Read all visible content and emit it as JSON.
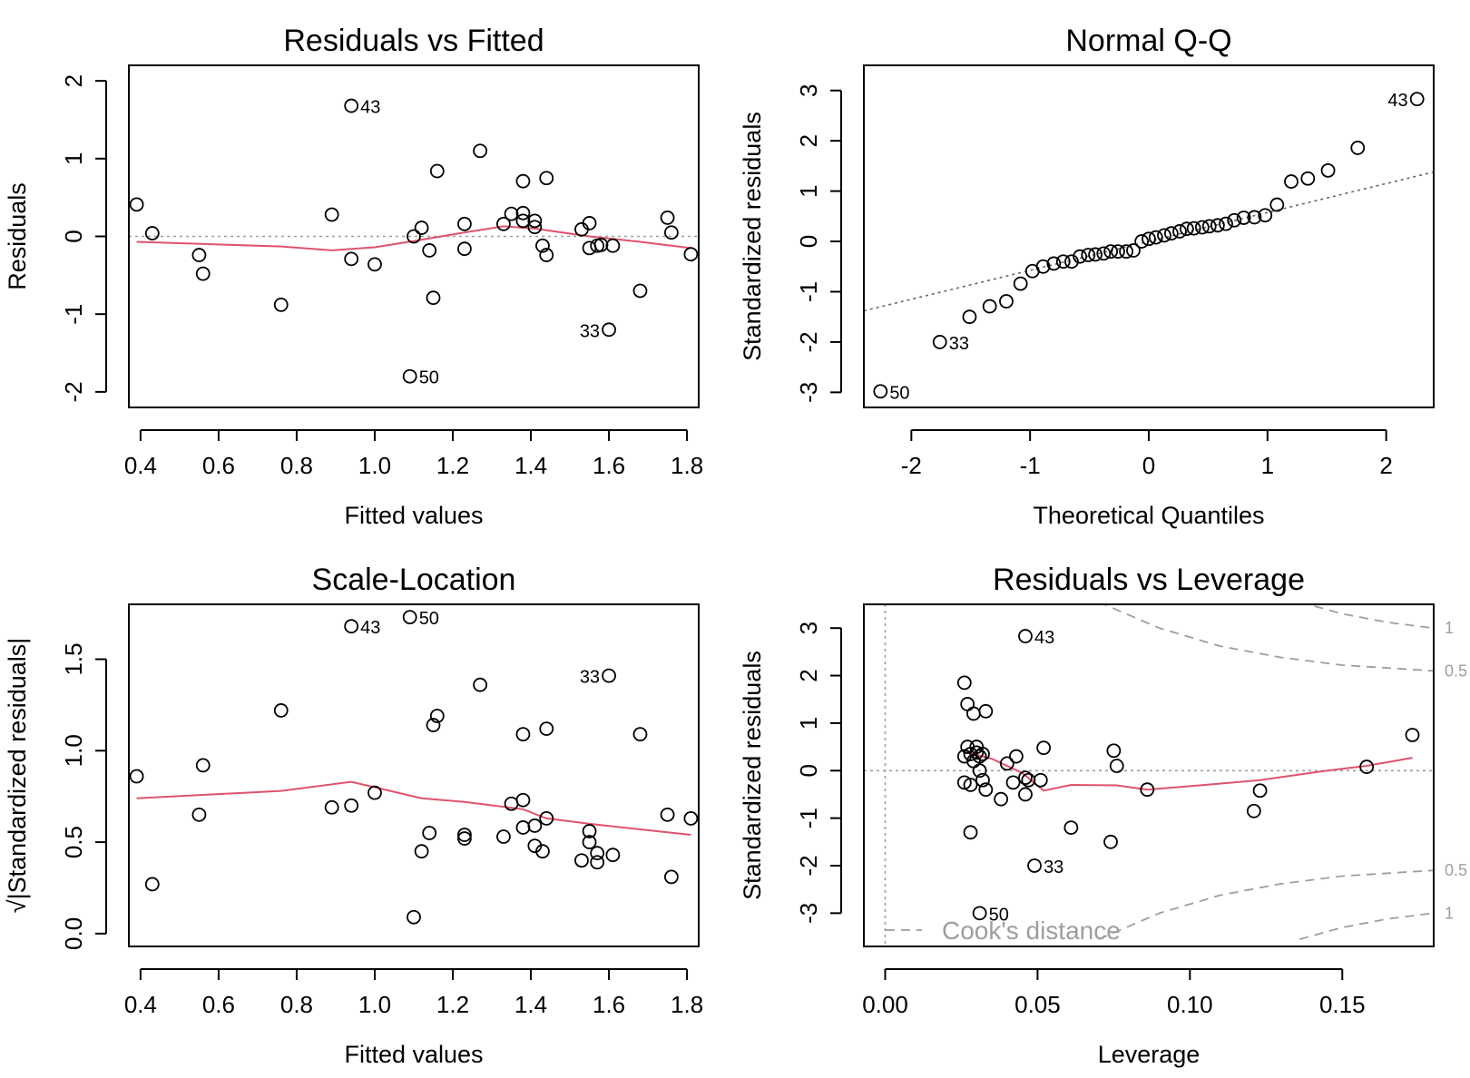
{
  "colors": {
    "points": "#000000",
    "smooth": "#df536b",
    "reference": "#9e9e9e"
  },
  "chart_data": [
    {
      "type": "scatter",
      "title": "Residuals vs Fitted",
      "xlabel": "Fitted values",
      "ylabel": "Residuals",
      "xlim": [
        0.37,
        1.83
      ],
      "ylim": [
        -2.2,
        2.2
      ],
      "xticks": [
        "0.4",
        "0.6",
        "0.8",
        "1.0",
        "1.2",
        "1.4",
        "1.6",
        "1.8"
      ],
      "yticks": [
        "-2",
        "-1",
        "0",
        "1",
        "2"
      ],
      "points": [
        [
          0.39,
          0.41
        ],
        [
          0.43,
          0.04
        ],
        [
          0.55,
          -0.24
        ],
        [
          0.56,
          -0.48
        ],
        [
          0.76,
          -0.88
        ],
        [
          0.89,
          0.28
        ],
        [
          0.94,
          1.68
        ],
        [
          0.94,
          -0.29
        ],
        [
          1.0,
          -0.36
        ],
        [
          1.09,
          -1.8
        ],
        [
          1.1,
          0.0
        ],
        [
          1.12,
          0.11
        ],
        [
          1.14,
          -0.18
        ],
        [
          1.15,
          -0.79
        ],
        [
          1.16,
          0.84
        ],
        [
          1.23,
          -0.16
        ],
        [
          1.23,
          0.16
        ],
        [
          1.27,
          1.1
        ],
        [
          1.33,
          0.16
        ],
        [
          1.35,
          0.29
        ],
        [
          1.38,
          0.71
        ],
        [
          1.38,
          0.3
        ],
        [
          1.38,
          0.2
        ],
        [
          1.41,
          0.2
        ],
        [
          1.41,
          0.12
        ],
        [
          1.43,
          -0.12
        ],
        [
          1.44,
          -0.24
        ],
        [
          1.44,
          0.75
        ],
        [
          1.53,
          0.09
        ],
        [
          1.55,
          0.17
        ],
        [
          1.55,
          -0.15
        ],
        [
          1.57,
          -0.12
        ],
        [
          1.58,
          -0.11
        ],
        [
          1.6,
          -1.2
        ],
        [
          1.61,
          -0.12
        ],
        [
          1.68,
          -0.7
        ],
        [
          1.75,
          0.24
        ],
        [
          1.76,
          0.05
        ],
        [
          1.81,
          -0.23
        ]
      ],
      "smooth": [
        [
          0.39,
          -0.07
        ],
        [
          0.76,
          -0.13
        ],
        [
          0.89,
          -0.18
        ],
        [
          1.0,
          -0.14
        ],
        [
          1.1,
          -0.06
        ],
        [
          1.23,
          0.05
        ],
        [
          1.33,
          0.13
        ],
        [
          1.41,
          0.1
        ],
        [
          1.55,
          0.0
        ],
        [
          1.68,
          -0.07
        ],
        [
          1.81,
          -0.15
        ]
      ],
      "reference": {
        "kind": "hline",
        "value": 0
      },
      "labels": [
        {
          "text": "43",
          "x": 0.94,
          "y": 1.68
        },
        {
          "text": "50",
          "x": 1.09,
          "y": -1.8
        },
        {
          "text": "33",
          "x": 1.6,
          "y": -1.2,
          "side": "left"
        }
      ]
    },
    {
      "type": "scatter",
      "title": "Normal Q-Q",
      "xlabel": "Theoretical Quantiles",
      "ylabel": "Standardized residuals",
      "xlim": [
        -2.4,
        2.4
      ],
      "ylim": [
        -3.3,
        3.5
      ],
      "xticks": [
        "-2",
        "-1",
        "0",
        "1",
        "2"
      ],
      "yticks": [
        "-3",
        "-2",
        "-1",
        "0",
        "1",
        "2",
        "3"
      ],
      "points": [
        [
          -2.26,
          -2.98
        ],
        [
          -1.76,
          -2.0
        ],
        [
          -1.51,
          -1.5
        ],
        [
          -1.34,
          -1.29
        ],
        [
          -1.2,
          -1.19
        ],
        [
          -1.08,
          -0.84
        ],
        [
          -0.98,
          -0.59
        ],
        [
          -0.89,
          -0.5
        ],
        [
          -0.8,
          -0.44
        ],
        [
          -0.72,
          -0.4
        ],
        [
          -0.65,
          -0.4
        ],
        [
          -0.58,
          -0.3
        ],
        [
          -0.51,
          -0.27
        ],
        [
          -0.45,
          -0.26
        ],
        [
          -0.38,
          -0.24
        ],
        [
          -0.32,
          -0.2
        ],
        [
          -0.26,
          -0.2
        ],
        [
          -0.19,
          -0.2
        ],
        [
          -0.13,
          -0.18
        ],
        [
          -0.06,
          0.0
        ],
        [
          0.0,
          0.05
        ],
        [
          0.06,
          0.08
        ],
        [
          0.13,
          0.12
        ],
        [
          0.19,
          0.16
        ],
        [
          0.26,
          0.2
        ],
        [
          0.32,
          0.25
        ],
        [
          0.38,
          0.26
        ],
        [
          0.45,
          0.28
        ],
        [
          0.51,
          0.3
        ],
        [
          0.58,
          0.32
        ],
        [
          0.65,
          0.35
        ],
        [
          0.72,
          0.42
        ],
        [
          0.8,
          0.47
        ],
        [
          0.89,
          0.48
        ],
        [
          0.98,
          0.52
        ],
        [
          1.08,
          0.73
        ],
        [
          1.2,
          1.19
        ],
        [
          1.34,
          1.25
        ],
        [
          1.51,
          1.41
        ],
        [
          1.76,
          1.86
        ],
        [
          2.26,
          2.83
        ]
      ],
      "reference": {
        "kind": "line",
        "points": [
          [
            -2.4,
            -1.38
          ],
          [
            2.4,
            1.38
          ]
        ]
      },
      "labels": [
        {
          "text": "43",
          "x": 2.26,
          "y": 2.83,
          "side": "left"
        },
        {
          "text": "33",
          "x": -1.76,
          "y": -2.0
        },
        {
          "text": "50",
          "x": -2.26,
          "y": -2.98
        }
      ]
    },
    {
      "type": "scatter",
      "title": "Scale-Location",
      "xlabel": "Fitted values",
      "ylabel": "√|Standardized residuals|",
      "xlim": [
        0.37,
        1.83
      ],
      "ylim": [
        -0.07,
        1.8
      ],
      "xticks": [
        "0.4",
        "0.6",
        "0.8",
        "1.0",
        "1.2",
        "1.4",
        "1.6",
        "1.8"
      ],
      "yticks": [
        "0.0",
        "0.5",
        "1.0",
        "1.5"
      ],
      "points": [
        [
          0.39,
          0.86
        ],
        [
          0.43,
          0.27
        ],
        [
          0.55,
          0.65
        ],
        [
          0.56,
          0.92
        ],
        [
          0.76,
          1.22
        ],
        [
          0.89,
          0.69
        ],
        [
          0.94,
          1.68
        ],
        [
          0.94,
          0.7
        ],
        [
          1.0,
          0.77
        ],
        [
          1.09,
          1.73
        ],
        [
          1.1,
          0.09
        ],
        [
          1.12,
          0.45
        ],
        [
          1.14,
          0.55
        ],
        [
          1.15,
          1.14
        ],
        [
          1.16,
          1.19
        ],
        [
          1.23,
          0.52
        ],
        [
          1.23,
          0.54
        ],
        [
          1.27,
          1.36
        ],
        [
          1.33,
          0.53
        ],
        [
          1.35,
          0.71
        ],
        [
          1.38,
          1.09
        ],
        [
          1.38,
          0.73
        ],
        [
          1.38,
          0.58
        ],
        [
          1.41,
          0.59
        ],
        [
          1.41,
          0.48
        ],
        [
          1.43,
          0.45
        ],
        [
          1.44,
          0.63
        ],
        [
          1.44,
          1.12
        ],
        [
          1.53,
          0.4
        ],
        [
          1.55,
          0.5
        ],
        [
          1.55,
          0.56
        ],
        [
          1.57,
          0.44
        ],
        [
          1.57,
          0.39
        ],
        [
          1.6,
          1.41
        ],
        [
          1.61,
          0.43
        ],
        [
          1.68,
          1.09
        ],
        [
          1.75,
          0.65
        ],
        [
          1.76,
          0.31
        ],
        [
          1.81,
          0.63
        ]
      ],
      "smooth": [
        [
          0.39,
          0.74
        ],
        [
          0.76,
          0.78
        ],
        [
          0.94,
          0.83
        ],
        [
          1.0,
          0.8
        ],
        [
          1.12,
          0.74
        ],
        [
          1.23,
          0.72
        ],
        [
          1.38,
          0.68
        ],
        [
          1.44,
          0.63
        ],
        [
          1.55,
          0.6
        ],
        [
          1.68,
          0.57
        ],
        [
          1.81,
          0.54
        ]
      ],
      "labels": [
        {
          "text": "43",
          "x": 0.94,
          "y": 1.68
        },
        {
          "text": "50",
          "x": 1.09,
          "y": 1.73
        },
        {
          "text": "33",
          "x": 1.6,
          "y": 1.41,
          "side": "left"
        }
      ]
    },
    {
      "type": "scatter",
      "title": "Residuals vs Leverage",
      "xlabel": "Leverage",
      "ylabel": "Standardized residuals",
      "xlim": [
        -0.007,
        0.18
      ],
      "ylim": [
        -3.7,
        3.5
      ],
      "xticks": [
        "0.00",
        "0.05",
        "0.10",
        "0.15"
      ],
      "yticks": [
        "-3",
        "-2",
        "-1",
        "0",
        "1",
        "2",
        "3"
      ],
      "points": [
        [
          0.026,
          1.85
        ],
        [
          0.026,
          0.3
        ],
        [
          0.026,
          -0.25
        ],
        [
          0.027,
          0.5
        ],
        [
          0.027,
          1.4
        ],
        [
          0.028,
          -1.3
        ],
        [
          0.028,
          0.35
        ],
        [
          0.028,
          -0.3
        ],
        [
          0.029,
          1.2
        ],
        [
          0.029,
          0.2
        ],
        [
          0.03,
          0.5
        ],
        [
          0.03,
          0.38
        ],
        [
          0.031,
          0.0
        ],
        [
          0.031,
          0.3
        ],
        [
          0.031,
          -3.0
        ],
        [
          0.032,
          0.35
        ],
        [
          0.032,
          -0.2
        ],
        [
          0.033,
          -0.4
        ],
        [
          0.033,
          1.25
        ],
        [
          0.038,
          -0.6
        ],
        [
          0.04,
          0.15
        ],
        [
          0.042,
          -0.25
        ],
        [
          0.043,
          0.3
        ],
        [
          0.046,
          2.83
        ],
        [
          0.046,
          -0.15
        ],
        [
          0.046,
          -0.5
        ],
        [
          0.047,
          -0.2
        ],
        [
          0.049,
          -2.0
        ],
        [
          0.051,
          -0.2
        ],
        [
          0.052,
          0.48
        ],
        [
          0.061,
          -1.2
        ],
        [
          0.074,
          -1.5
        ],
        [
          0.075,
          0.42
        ],
        [
          0.076,
          0.1
        ],
        [
          0.086,
          -0.4
        ],
        [
          0.121,
          -0.85
        ],
        [
          0.123,
          -0.42
        ],
        [
          0.158,
          0.08
        ],
        [
          0.173,
          0.75
        ]
      ],
      "smooth": [
        [
          0.026,
          0.4
        ],
        [
          0.035,
          0.25
        ],
        [
          0.045,
          -0.05
        ],
        [
          0.052,
          -0.42
        ],
        [
          0.061,
          -0.3
        ],
        [
          0.076,
          -0.31
        ],
        [
          0.086,
          -0.4
        ],
        [
          0.105,
          -0.3
        ],
        [
          0.123,
          -0.2
        ],
        [
          0.145,
          0.0
        ],
        [
          0.158,
          0.1
        ],
        [
          0.173,
          0.27
        ]
      ],
      "reference": {
        "kind": "hline",
        "value": 0
      },
      "cooks_contours": [
        {
          "label": "1",
          "points": [
            [
              0.136,
              3.55
            ],
            [
              0.15,
              3.3
            ],
            [
              0.165,
              3.12
            ],
            [
              0.18,
              3.0
            ]
          ]
        },
        {
          "label": "0.5",
          "points": [
            [
              0.07,
              3.55
            ],
            [
              0.09,
              3.0
            ],
            [
              0.11,
              2.62
            ],
            [
              0.13,
              2.38
            ],
            [
              0.15,
              2.22
            ],
            [
              0.18,
              2.1
            ]
          ]
        },
        {
          "label": "0.5",
          "points": [
            [
              0.07,
              -3.55
            ],
            [
              0.09,
              -3.0
            ],
            [
              0.11,
              -2.62
            ],
            [
              0.13,
              -2.38
            ],
            [
              0.15,
              -2.22
            ],
            [
              0.18,
              -2.1
            ]
          ]
        },
        {
          "label": "1",
          "points": [
            [
              0.136,
              -3.55
            ],
            [
              0.15,
              -3.3
            ],
            [
              0.165,
              -3.12
            ],
            [
              0.18,
              -3.0
            ]
          ]
        }
      ],
      "legend": {
        "text": "Cook's distance",
        "position": "bottom-left"
      },
      "labels": [
        {
          "text": "43",
          "x": 0.046,
          "y": 2.83
        },
        {
          "text": "33",
          "x": 0.049,
          "y": -2.0
        },
        {
          "text": "50",
          "x": 0.031,
          "y": -3.0
        }
      ]
    }
  ]
}
